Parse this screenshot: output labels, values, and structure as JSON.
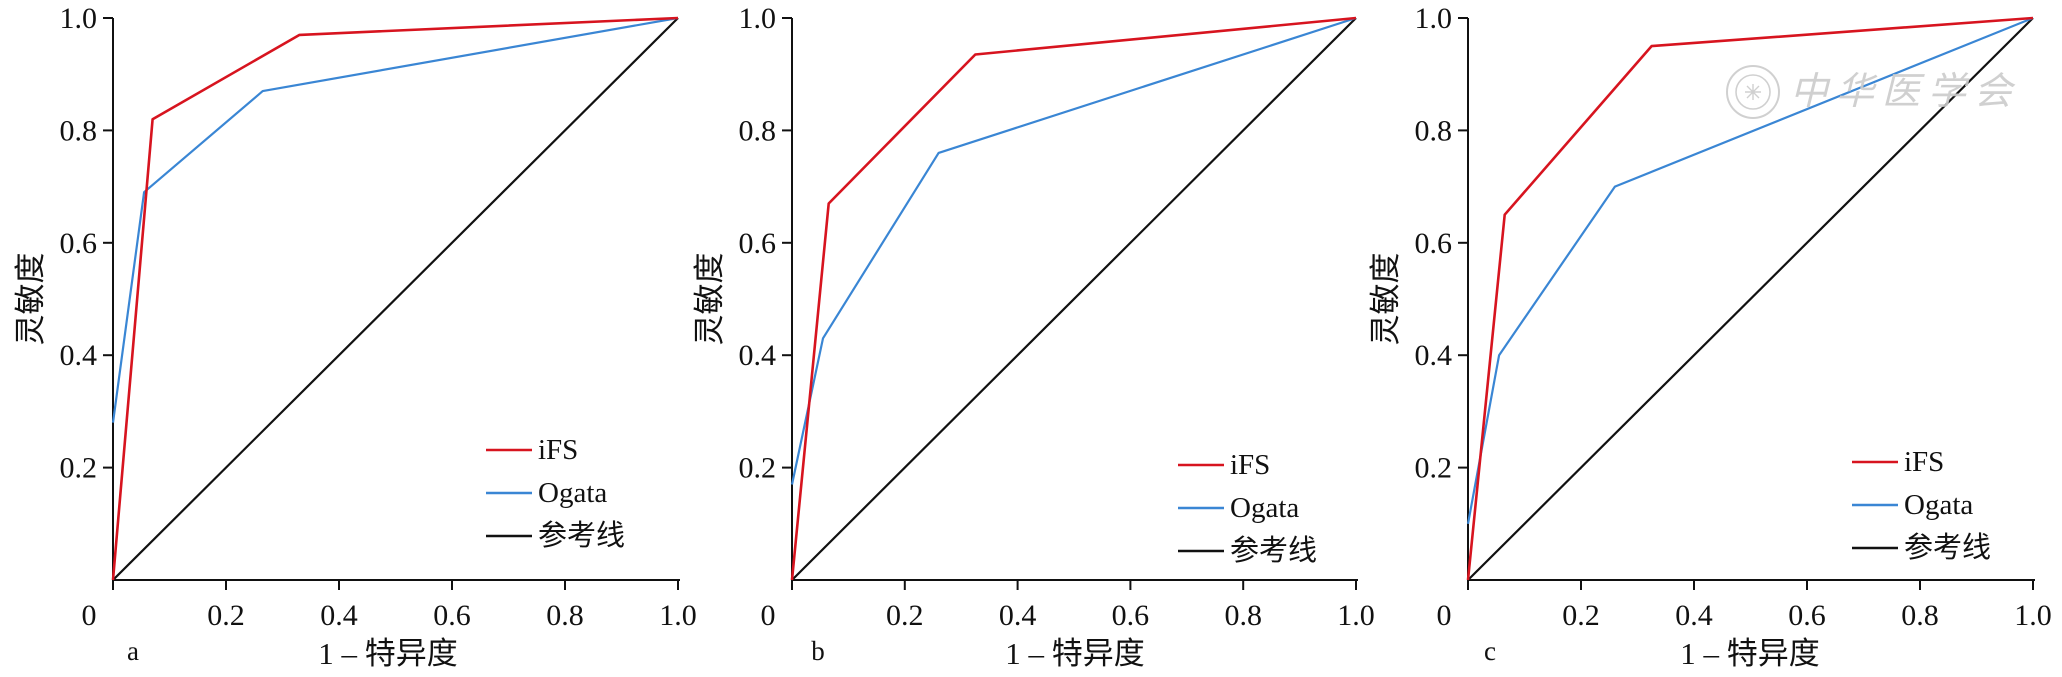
{
  "chart_data": [
    {
      "type": "line",
      "panel_label": "a",
      "xlabel": "1 – 特异度",
      "ylabel": "灵敏度",
      "xlim": [
        0,
        1
      ],
      "ylim": [
        0,
        1
      ],
      "x_ticks": [
        "0",
        "0.2",
        "0.4",
        "0.6",
        "0.8",
        "1.0"
      ],
      "y_ticks": [
        "0.2",
        "0.4",
        "0.6",
        "0.8",
        "1.0"
      ],
      "legend_position": "bottom-right",
      "grid": false,
      "series": [
        {
          "name": "iFS",
          "color": "#d7141f",
          "points": [
            [
              0,
              0
            ],
            [
              0.07,
              0.82
            ],
            [
              0.33,
              0.97
            ],
            [
              1,
              1
            ]
          ]
        },
        {
          "name": "Ogata",
          "color": "#3a86d4",
          "points": [
            [
              0,
              0.28
            ],
            [
              0.055,
              0.69
            ],
            [
              0.265,
              0.87
            ],
            [
              1,
              1
            ]
          ]
        },
        {
          "name": "参考线",
          "color": "#111111",
          "points": [
            [
              0,
              0
            ],
            [
              1,
              1
            ]
          ]
        }
      ]
    },
    {
      "type": "line",
      "panel_label": "b",
      "xlabel": "1 – 特异度",
      "ylabel": "灵敏度",
      "xlim": [
        0,
        1
      ],
      "ylim": [
        0,
        1
      ],
      "x_ticks": [
        "0",
        "0.2",
        "0.4",
        "0.6",
        "0.8",
        "1.0"
      ],
      "y_ticks": [
        "0.2",
        "0.4",
        "0.6",
        "0.8",
        "1.0"
      ],
      "legend_position": "bottom-right",
      "grid": false,
      "series": [
        {
          "name": "iFS",
          "color": "#d7141f",
          "points": [
            [
              0,
              0
            ],
            [
              0.065,
              0.67
            ],
            [
              0.325,
              0.935
            ],
            [
              1,
              1
            ]
          ]
        },
        {
          "name": "Ogata",
          "color": "#3a86d4",
          "points": [
            [
              0,
              0.17
            ],
            [
              0.055,
              0.43
            ],
            [
              0.26,
              0.76
            ],
            [
              1,
              1
            ]
          ]
        },
        {
          "name": "参考线",
          "color": "#111111",
          "points": [
            [
              0,
              0
            ],
            [
              1,
              1
            ]
          ]
        }
      ]
    },
    {
      "type": "line",
      "panel_label": "c",
      "xlabel": "1 – 特异度",
      "ylabel": "灵敏度",
      "xlim": [
        0,
        1
      ],
      "ylim": [
        0,
        1
      ],
      "x_ticks": [
        "0",
        "0.2",
        "0.4",
        "0.6",
        "0.8",
        "1.0"
      ],
      "y_ticks": [
        "0.2",
        "0.4",
        "0.6",
        "0.8",
        "1.0"
      ],
      "legend_position": "bottom-right",
      "grid": false,
      "series": [
        {
          "name": "iFS",
          "color": "#d7141f",
          "points": [
            [
              0,
              0
            ],
            [
              0.065,
              0.65
            ],
            [
              0.325,
              0.95
            ],
            [
              1,
              1
            ]
          ]
        },
        {
          "name": "Ogata",
          "color": "#3a86d4",
          "points": [
            [
              0,
              0.1
            ],
            [
              0.055,
              0.4
            ],
            [
              0.26,
              0.7
            ],
            [
              1,
              1
            ]
          ]
        },
        {
          "name": "参考线",
          "color": "#111111",
          "points": [
            [
              0,
              0
            ],
            [
              1,
              1
            ]
          ]
        }
      ]
    }
  ],
  "watermark": {
    "text": "中华医学会",
    "icon": "society-seal-icon",
    "color": "#cccccc"
  }
}
